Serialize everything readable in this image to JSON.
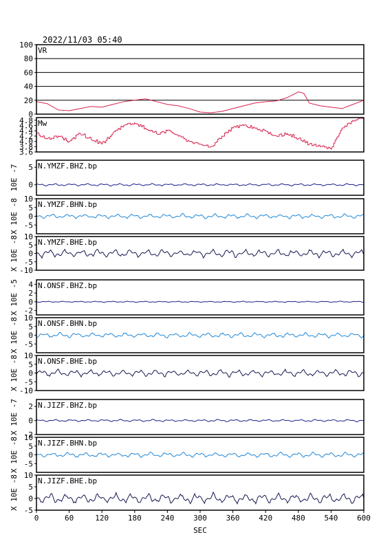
{
  "header": {
    "timestamp": "2022/11/03 05:40"
  },
  "x_axis": {
    "label": "SEC",
    "ticks": [
      "0",
      "60",
      "120",
      "180",
      "240",
      "300",
      "360",
      "420",
      "480",
      "540",
      "600"
    ],
    "range": [
      0,
      600
    ]
  },
  "colors": {
    "frame": "#000000",
    "vr": "#d6204b",
    "mw": "#d6204b",
    "bhz": "#1c1c8c",
    "bhn": "#1e86d6",
    "bhe": "#161650"
  },
  "chart_data": [
    {
      "type": "line",
      "label": "VR",
      "ylim": [
        0,
        100
      ],
      "yticks": [
        "0",
        "20",
        "40",
        "60",
        "80",
        "100"
      ],
      "grid": true,
      "x": [
        0,
        20,
        40,
        60,
        80,
        100,
        120,
        140,
        160,
        180,
        200,
        220,
        240,
        260,
        280,
        300,
        320,
        340,
        360,
        380,
        400,
        420,
        440,
        460,
        480,
        490,
        500,
        520,
        540,
        560,
        580,
        600
      ],
      "y": [
        18,
        15,
        6,
        5,
        8,
        11,
        10,
        14,
        18,
        20,
        22,
        18,
        14,
        12,
        8,
        3,
        2,
        4,
        8,
        12,
        16,
        18,
        19,
        24,
        32,
        30,
        16,
        12,
        10,
        8,
        14,
        20
      ]
    },
    {
      "type": "line",
      "label": "Mw",
      "ylim": [
        3.6,
        4.9
      ],
      "yticks": [
        "3.6",
        "3.8",
        "4.0",
        "4.2",
        "4.4",
        "4.6",
        "4.8"
      ],
      "x": [
        0,
        20,
        40,
        60,
        80,
        100,
        120,
        140,
        160,
        180,
        200,
        220,
        240,
        260,
        280,
        300,
        320,
        340,
        360,
        380,
        400,
        420,
        440,
        460,
        480,
        500,
        520,
        540,
        560,
        580,
        600
      ],
      "y": [
        4.3,
        4.1,
        4.2,
        4.0,
        4.3,
        4.1,
        3.9,
        4.3,
        4.6,
        4.7,
        4.5,
        4.3,
        4.4,
        4.2,
        4.0,
        3.9,
        3.8,
        4.2,
        4.5,
        4.6,
        4.5,
        4.4,
        4.2,
        4.3,
        4.1,
        3.9,
        3.8,
        3.7,
        4.5,
        4.8,
        4.9
      ]
    },
    {
      "type": "line",
      "label": "N.YMZF.BHZ.bp",
      "scale_label": "10E -7",
      "ylim": [
        -3,
        7
      ],
      "yticks": [
        "0",
        "5"
      ],
      "series": [
        {
          "kind": "waveform",
          "amplitude": 0.3,
          "seed": 1
        }
      ]
    },
    {
      "type": "line",
      "label": "N.YMZF.BHN.bp",
      "scale_label": "X 10E -8",
      "ylim": [
        -10,
        10
      ],
      "yticks": [
        "-5",
        "0",
        "5",
        "10"
      ],
      "series": [
        {
          "kind": "waveform",
          "amplitude": 1.2,
          "seed": 2
        }
      ]
    },
    {
      "type": "line",
      "label": "N.YMZF.BHE.bp",
      "scale_label": "X 10E -8",
      "ylim": [
        -10,
        10
      ],
      "yticks": [
        "-10",
        "-5",
        "0",
        "5",
        "10"
      ],
      "series": [
        {
          "kind": "waveform",
          "amplitude": 2.2,
          "seed": 3
        }
      ]
    },
    {
      "type": "line",
      "label": "N.ONSF.BHZ.bp",
      "scale_label": "X 10E -5",
      "ylim": [
        -3,
        5
      ],
      "yticks": [
        "-2",
        "0",
        "2",
        "4"
      ],
      "series": [
        {
          "kind": "waveform",
          "amplitude": 0.12,
          "seed": 4
        }
      ]
    },
    {
      "type": "line",
      "label": "N.ONSF.BHN.bp",
      "scale_label": "X 10E -8",
      "ylim": [
        -10,
        10
      ],
      "yticks": [
        "-5",
        "0",
        "5",
        "10"
      ],
      "series": [
        {
          "kind": "waveform",
          "amplitude": 1.3,
          "seed": 5
        }
      ]
    },
    {
      "type": "line",
      "label": "N.ONSF.BHE.bp",
      "scale_label": "X 10E -8",
      "ylim": [
        -10,
        10
      ],
      "yticks": [
        "-10",
        "-5",
        "0",
        "5",
        "10"
      ],
      "series": [
        {
          "kind": "waveform",
          "amplitude": 1.8,
          "seed": 6
        }
      ]
    },
    {
      "type": "line",
      "label": "N.JIZF.BHZ.bp",
      "scale_label": "X 10E -7",
      "ylim": [
        -2,
        3
      ],
      "yticks": [
        "-2",
        "0",
        "2"
      ],
      "series": [
        {
          "kind": "waveform",
          "amplitude": 0.15,
          "seed": 7
        }
      ]
    },
    {
      "type": "line",
      "label": "N.JIZF.BHN.bp",
      "scale_label": "X 10E -8",
      "ylim": [
        -10,
        10
      ],
      "yticks": [
        "-5",
        "0",
        "5",
        "10"
      ],
      "series": [
        {
          "kind": "waveform",
          "amplitude": 1.3,
          "seed": 8
        }
      ]
    },
    {
      "type": "line",
      "label": "N.JIZF.BHE.bp",
      "scale_label": "X 10E -8",
      "ylim": [
        -5,
        10
      ],
      "yticks": [
        "-5",
        "0",
        "5",
        "10"
      ],
      "series": [
        {
          "kind": "waveform",
          "amplitude": 2.0,
          "seed": 9
        }
      ]
    }
  ]
}
